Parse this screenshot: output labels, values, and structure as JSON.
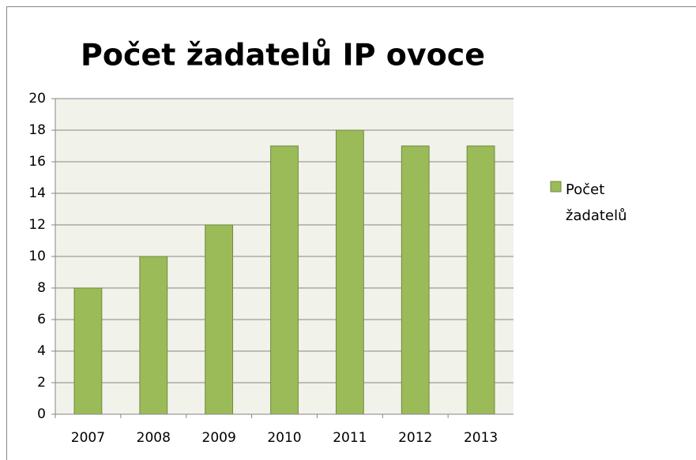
{
  "chart_data": {
    "type": "bar",
    "title": "Počet žadatelů IP ovoce",
    "categories": [
      "2007",
      "2008",
      "2009",
      "2010",
      "2011",
      "2012",
      "2013"
    ],
    "series": [
      {
        "name": "Počet žadatelů",
        "color": "#9bbb59",
        "values": [
          8,
          10,
          12,
          17,
          18,
          17,
          17
        ]
      }
    ],
    "ylim": [
      0,
      20
    ],
    "yticks": [
      0,
      2,
      4,
      6,
      8,
      10,
      12,
      14,
      16,
      18,
      20
    ],
    "grid": true,
    "legend": "right"
  }
}
